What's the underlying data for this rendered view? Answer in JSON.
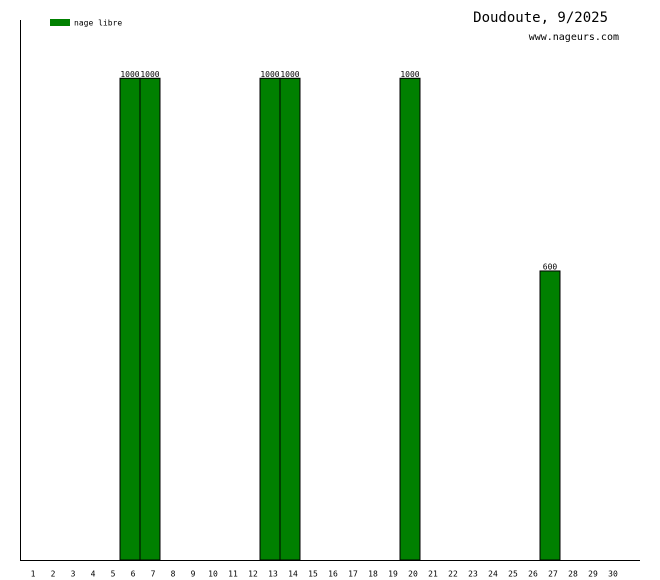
{
  "chart_data": {
    "type": "bar",
    "title": "Doudoute, 9/2025",
    "subtitle": "www.nageurs.com",
    "categories": [
      "1",
      "2",
      "3",
      "4",
      "5",
      "6",
      "7",
      "8",
      "9",
      "10",
      "11",
      "12",
      "13",
      "14",
      "15",
      "16",
      "17",
      "18",
      "19",
      "20",
      "21",
      "22",
      "23",
      "24",
      "25",
      "26",
      "27",
      "28",
      "29",
      "30"
    ],
    "series": [
      {
        "name": "nage libre",
        "color": "#008000",
        "values": [
          null,
          null,
          null,
          null,
          null,
          1000,
          1000,
          null,
          null,
          null,
          null,
          null,
          1000,
          1000,
          null,
          null,
          null,
          null,
          null,
          1000,
          null,
          null,
          null,
          null,
          null,
          null,
          600,
          null,
          null,
          null
        ]
      }
    ],
    "ylim": [
      0,
      1121
    ]
  }
}
